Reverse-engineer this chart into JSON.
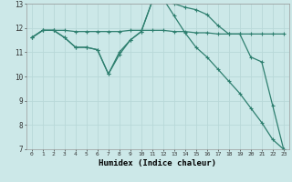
{
  "xlabel": "Humidex (Indice chaleur)",
  "bg_color": "#cce8e8",
  "grid_color": "#b8d8d8",
  "line_color": "#2e7f6f",
  "xlim": [
    -0.5,
    23.5
  ],
  "ylim": [
    7,
    13
  ],
  "xticks": [
    0,
    1,
    2,
    3,
    4,
    5,
    6,
    7,
    8,
    9,
    10,
    11,
    12,
    13,
    14,
    15,
    16,
    17,
    18,
    19,
    20,
    21,
    22,
    23
  ],
  "yticks": [
    7,
    8,
    9,
    10,
    11,
    12,
    13
  ],
  "line1_y": [
    11.6,
    11.9,
    11.9,
    11.9,
    11.85,
    11.85,
    11.85,
    11.85,
    11.85,
    11.9,
    11.9,
    11.9,
    11.9,
    11.85,
    11.85,
    11.8,
    11.8,
    11.75,
    11.75,
    11.75,
    11.75,
    11.75,
    11.75,
    11.75
  ],
  "line2_y": [
    11.6,
    11.9,
    11.9,
    11.6,
    11.2,
    11.2,
    11.1,
    10.1,
    11.0,
    11.5,
    11.85,
    13.1,
    13.2,
    13.0,
    12.85,
    12.75,
    12.55,
    12.1,
    11.75,
    11.75,
    10.8,
    10.6,
    8.8,
    7.0
  ],
  "line3_y": [
    11.6,
    11.9,
    11.9,
    11.6,
    11.2,
    11.2,
    11.1,
    10.1,
    10.9,
    11.5,
    11.85,
    13.1,
    13.2,
    12.5,
    11.8,
    11.2,
    10.8,
    10.3,
    9.8,
    9.3,
    8.7,
    8.1,
    7.4,
    7.0
  ]
}
